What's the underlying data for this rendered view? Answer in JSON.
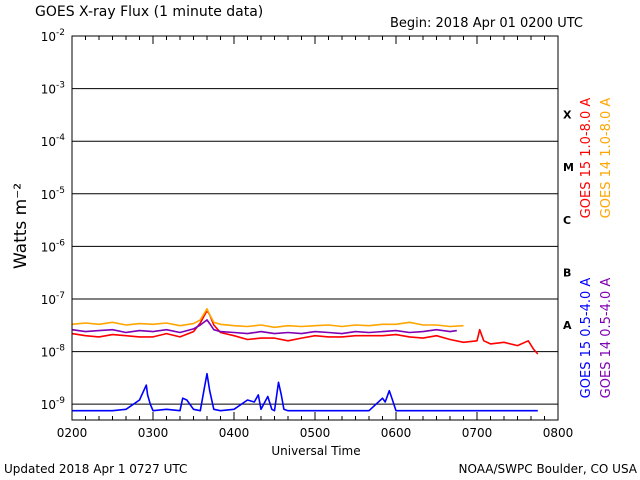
{
  "page": {
    "title": "GOES X-ray Flux (1 minute data)",
    "begin": "Begin: 2018 Apr 01 0200 UTC",
    "updated": "Updated 2018 Apr  1 0727 UTC",
    "credit": "NOAA/SWPC Boulder, CO USA"
  },
  "chart_data": {
    "type": "line",
    "title": "GOES X-ray Flux (1 minute data)",
    "xlabel": "Universal Time",
    "ylabel": "Watts m⁻²",
    "yscale": "log",
    "xlim": [
      "0200",
      "0800"
    ],
    "ylim": [
      5e-10,
      0.01
    ],
    "grid": "horizontal at each decade",
    "x_ticks": [
      "0200",
      "0300",
      "0400",
      "0500",
      "0600",
      "0700",
      "0800"
    ],
    "y_ticks": [
      {
        "mantissa": "10",
        "exp": "-9",
        "value": 1e-09
      },
      {
        "mantissa": "10",
        "exp": "-8",
        "value": 1e-08
      },
      {
        "mantissa": "10",
        "exp": "-7",
        "value": 1e-07
      },
      {
        "mantissa": "10",
        "exp": "-6",
        "value": 1e-06
      },
      {
        "mantissa": "10",
        "exp": "-5",
        "value": 1e-05
      },
      {
        "mantissa": "10",
        "exp": "-4",
        "value": 0.0001
      },
      {
        "mantissa": "10",
        "exp": "-3",
        "value": 0.001
      },
      {
        "mantissa": "10",
        "exp": "-2",
        "value": 0.01
      }
    ],
    "flare_classes": [
      {
        "label": "A",
        "value": 3.2e-08
      },
      {
        "label": "B",
        "value": 3.2e-07
      },
      {
        "label": "C",
        "value": 3.2e-06
      },
      {
        "label": "M",
        "value": 3.2e-05
      },
      {
        "label": "X",
        "value": 0.00032
      }
    ],
    "legend": [
      {
        "name": "GOES 15 1.0-8.0 A",
        "color": "#ff0000"
      },
      {
        "name": "GOES 14 1.0-8.0 A",
        "color": "#ffa500"
      },
      {
        "name": "GOES 15 0.5-4.0 A",
        "color": "#0000ff"
      },
      {
        "name": "GOES 14 0.5-4.0 A",
        "color": "#7f00b4"
      }
    ],
    "series": [
      {
        "name": "GOES 15 1.0-8.0 A",
        "color": "#ff0000",
        "x": [
          "0200",
          "0210",
          "0220",
          "0230",
          "0240",
          "0250",
          "0300",
          "0310",
          "0320",
          "0330",
          "0335",
          "0340",
          "0342",
          "0345",
          "0350",
          "0400",
          "0410",
          "0420",
          "0430",
          "0440",
          "0450",
          "0500",
          "0510",
          "0520",
          "0530",
          "0540",
          "0550",
          "0600",
          "0610",
          "0620",
          "0630",
          "0640",
          "0650",
          "0700",
          "0702",
          "0705",
          "0710",
          "0720",
          "0730",
          "0738",
          "0742",
          "0745"
        ],
        "values": [
          2.2e-08,
          2e-08,
          1.9e-08,
          2.1e-08,
          2e-08,
          1.9e-08,
          1.9e-08,
          2.2e-08,
          1.9e-08,
          2.4e-08,
          3.5e-08,
          6e-08,
          5e-08,
          3.2e-08,
          2.3e-08,
          2e-08,
          1.7e-08,
          1.8e-08,
          1.8e-08,
          1.6e-08,
          1.8e-08,
          2e-08,
          1.9e-08,
          1.9e-08,
          2e-08,
          2e-08,
          2e-08,
          2.1e-08,
          1.9e-08,
          1.8e-08,
          2e-08,
          1.7e-08,
          1.5e-08,
          1.6e-08,
          2.6e-08,
          1.6e-08,
          1.4e-08,
          1.5e-08,
          1.3e-08,
          1.6e-08,
          1.1e-08,
          9e-09
        ]
      },
      {
        "name": "GOES 14 1.0-8.0 A",
        "color": "#ffa500",
        "x": [
          "0200",
          "0210",
          "0220",
          "0230",
          "0240",
          "0250",
          "0300",
          "0310",
          "0320",
          "0330",
          "0335",
          "0340",
          "0342",
          "0345",
          "0350",
          "0400",
          "0410",
          "0420",
          "0430",
          "0440",
          "0450",
          "0500",
          "0510",
          "0520",
          "0530",
          "0540",
          "0550",
          "0600",
          "0610",
          "0620",
          "0630",
          "0640",
          "0650"
        ],
        "values": [
          3.3e-08,
          3.5e-08,
          3.3e-08,
          3.6e-08,
          3.2e-08,
          3.4e-08,
          3.3e-08,
          3.5e-08,
          3.1e-08,
          3.4e-08,
          4e-08,
          6.5e-08,
          5e-08,
          3.6e-08,
          3.3e-08,
          3.1e-08,
          3e-08,
          3.2e-08,
          2.9e-08,
          3.1e-08,
          3e-08,
          3.1e-08,
          3.2e-08,
          3e-08,
          3.2e-08,
          3.1e-08,
          3.3e-08,
          3.3e-08,
          3.6e-08,
          3.2e-08,
          3.2e-08,
          3e-08,
          3.1e-08
        ]
      },
      {
        "name": "GOES 14 0.5-4.0 A",
        "color": "#7f00b4",
        "x": [
          "0200",
          "0210",
          "0220",
          "0230",
          "0240",
          "0250",
          "0300",
          "0310",
          "0320",
          "0330",
          "0335",
          "0340",
          "0342",
          "0345",
          "0350",
          "0400",
          "0410",
          "0420",
          "0430",
          "0440",
          "0450",
          "0500",
          "0510",
          "0520",
          "0530",
          "0540",
          "0550",
          "0600",
          "0610",
          "0620",
          "0630",
          "0640",
          "0645"
        ],
        "values": [
          2.6e-08,
          2.4e-08,
          2.5e-08,
          2.6e-08,
          2.3e-08,
          2.5e-08,
          2.4e-08,
          2.6e-08,
          2.3e-08,
          2.7e-08,
          3.2e-08,
          4e-08,
          3.4e-08,
          2.6e-08,
          2.4e-08,
          2.3e-08,
          2.2e-08,
          2.4e-08,
          2.2e-08,
          2.3e-08,
          2.2e-08,
          2.4e-08,
          2.3e-08,
          2.2e-08,
          2.4e-08,
          2.3e-08,
          2.4e-08,
          2.5e-08,
          2.3e-08,
          2.4e-08,
          2.6e-08,
          2.4e-08,
          2.5e-08
        ]
      },
      {
        "name": "GOES 15 0.5-4.0 A",
        "color": "#0000ff",
        "x": [
          "0200",
          "0210",
          "0220",
          "0230",
          "0240",
          "0250",
          "0255",
          "0256",
          "0258",
          "0300",
          "0310",
          "0320",
          "0322",
          "0325",
          "0330",
          "0335",
          "0338",
          "0340",
          "0342",
          "0345",
          "0350",
          "0400",
          "0410",
          "0415",
          "0418",
          "0420",
          "0425",
          "0428",
          "0430",
          "0433",
          "0435",
          "0437",
          "0440",
          "0450",
          "0500",
          "0510",
          "0520",
          "0530",
          "0540",
          "0550",
          "0552",
          "0555",
          "0557",
          "0600",
          "0610",
          "0620",
          "0630",
          "0640",
          "0650",
          "0700",
          "0710",
          "0720",
          "0730",
          "0740",
          "0745"
        ],
        "values": [
          7.5e-10,
          7.5e-10,
          7.5e-10,
          7.5e-10,
          8e-10,
          1.2e-09,
          2.3e-09,
          1.5e-09,
          1e-09,
          7.5e-10,
          8e-10,
          7.5e-10,
          1.3e-09,
          1.2e-09,
          8e-10,
          7.5e-10,
          2e-09,
          3.8e-09,
          1.8e-09,
          8e-10,
          7.5e-10,
          8e-10,
          1.2e-09,
          1.1e-09,
          1.5e-09,
          8e-10,
          1.4e-09,
          8e-10,
          7.5e-10,
          2.6e-09,
          1.5e-09,
          8e-10,
          7.5e-10,
          7.5e-10,
          7.5e-10,
          7.5e-10,
          7.5e-10,
          7.5e-10,
          7.5e-10,
          1.3e-09,
          1.1e-09,
          1.8e-09,
          1.3e-09,
          7.5e-10,
          7.5e-10,
          7.5e-10,
          7.5e-10,
          7.5e-10,
          7.5e-10,
          7.5e-10,
          7.5e-10,
          7.5e-10,
          7.5e-10,
          7.5e-10,
          7.5e-10
        ]
      }
    ]
  }
}
